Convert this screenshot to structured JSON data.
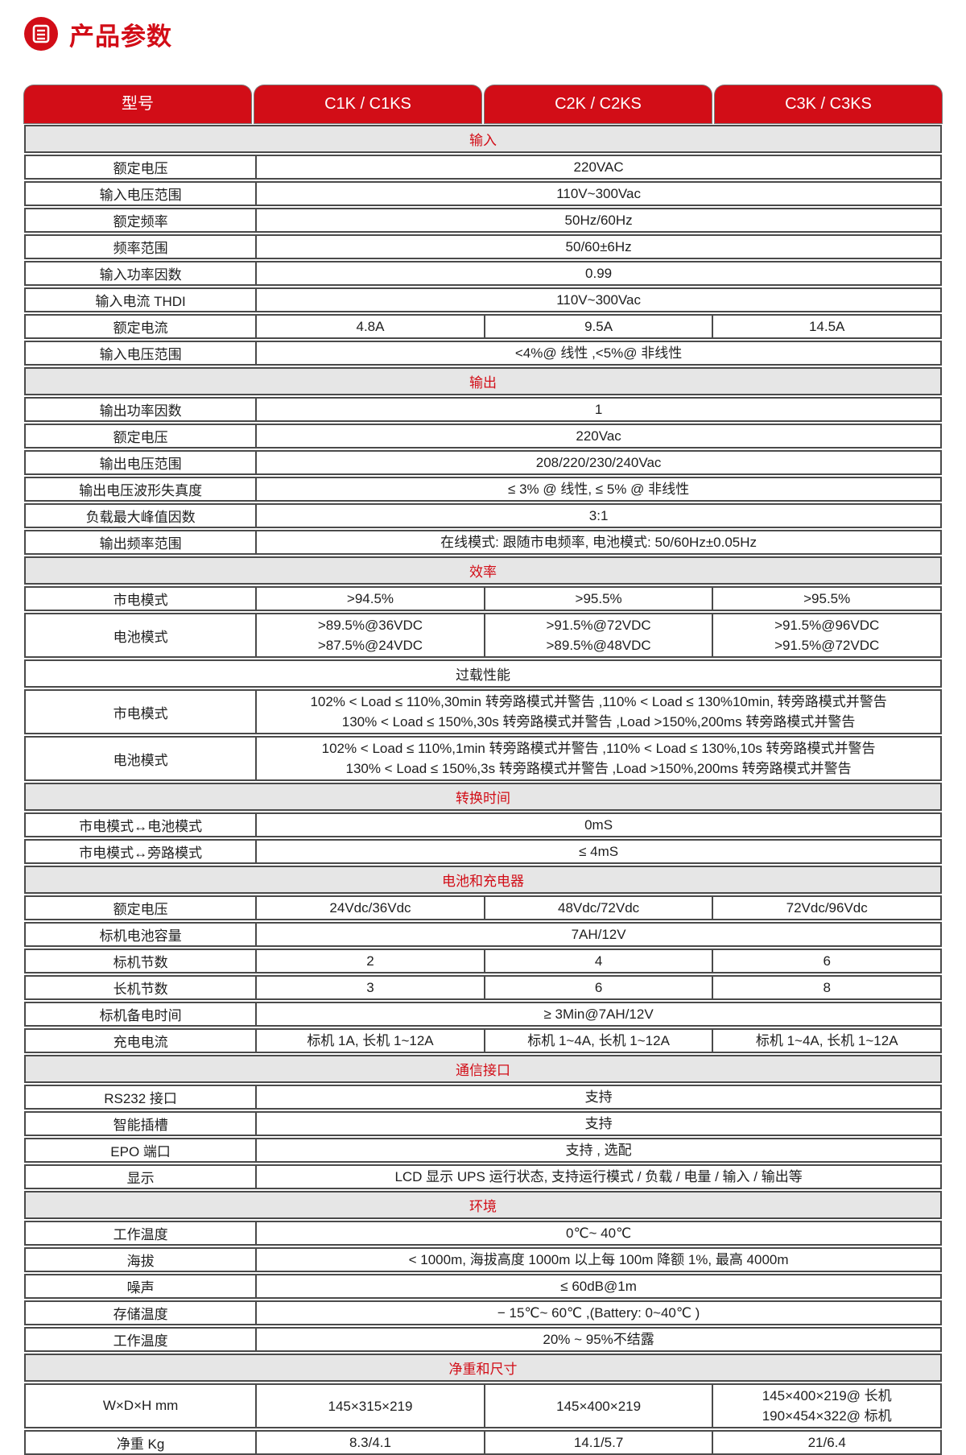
{
  "page": {
    "title": "产品参数"
  },
  "colors": {
    "accent_red": "#d20d17",
    "section_gray": "#e6e6e6",
    "border_gray": "#4a4a4a"
  },
  "icons": {
    "title_icon": "spec-sheet-icon"
  },
  "table": {
    "header_tabs": [
      "型号",
      "C1K / C1KS",
      "C2K / C2KS",
      "C3K / C3KS"
    ],
    "sections": [
      {
        "title": "输入",
        "style": "gray",
        "rows": [
          {
            "label": "额定电压",
            "cells": [
              {
                "text": "220VAC"
              }
            ]
          },
          {
            "label": "输入电压范围",
            "cells": [
              {
                "text": "110V~300Vac"
              }
            ]
          },
          {
            "label": "额定频率",
            "cells": [
              {
                "text": "50Hz/60Hz"
              }
            ]
          },
          {
            "label": "频率范围",
            "cells": [
              {
                "text": "50/60±6Hz"
              }
            ]
          },
          {
            "label": "输入功率因数",
            "cells": [
              {
                "text": "0.99"
              }
            ]
          },
          {
            "label": "输入电流 THDI",
            "cells": [
              {
                "text": "110V~300Vac"
              }
            ]
          },
          {
            "label": "额定电流",
            "cells": [
              {
                "text": "4.8A"
              },
              {
                "text": "9.5A"
              },
              {
                "text": "14.5A"
              }
            ]
          },
          {
            "label": "输入电压范围",
            "cells": [
              {
                "text": "<4%@ 线性 ,<5%@ 非线性"
              }
            ]
          }
        ]
      },
      {
        "title": "输出",
        "style": "gray",
        "rows": [
          {
            "label": "输出功率因数",
            "cells": [
              {
                "text": "1"
              }
            ]
          },
          {
            "label": "额定电压",
            "cells": [
              {
                "text": "220Vac"
              }
            ]
          },
          {
            "label": "输出电压范围",
            "cells": [
              {
                "text": "208/220/230/240Vac"
              }
            ]
          },
          {
            "label": "输出电压波形失真度",
            "cells": [
              {
                "text": "≤ 3% @ 线性, ≤ 5% @ 非线性"
              }
            ]
          },
          {
            "label": "负载最大峰值因数",
            "cells": [
              {
                "text": "3:1"
              }
            ]
          },
          {
            "label": "输出频率范围",
            "cells": [
              {
                "text": "在线模式: 跟随市电频率, 电池模式: 50/60Hz±0.05Hz"
              }
            ]
          }
        ]
      },
      {
        "title": "效率",
        "style": "gray",
        "rows": [
          {
            "label": "市电模式",
            "cells": [
              {
                "text": ">94.5%"
              },
              {
                "text": ">95.5%"
              },
              {
                "text": ">95.5%"
              }
            ]
          },
          {
            "label": "电池模式",
            "cells": [
              {
                "lines": [
                  ">89.5%@36VDC",
                  ">87.5%@24VDC"
                ]
              },
              {
                "lines": [
                  ">91.5%@72VDC",
                  ">89.5%@48VDC"
                ]
              },
              {
                "lines": [
                  ">91.5%@96VDC",
                  ">91.5%@72VDC"
                ]
              }
            ]
          }
        ]
      },
      {
        "title": "过载性能",
        "style": "white",
        "rows": [
          {
            "label": "市电模式",
            "cells": [
              {
                "lines": [
                  "102% < Load ≤ 110%,30min 转旁路模式并警告 ,110% < Load ≤ 130%10min, 转旁路模式并警告",
                  "130% < Load ≤ 150%,30s 转旁路模式并警告 ,Load >150%,200ms 转旁路模式并警告"
                ]
              }
            ]
          },
          {
            "label": "电池模式",
            "cells": [
              {
                "lines": [
                  "102% < Load ≤ 110%,1min 转旁路模式并警告 ,110% < Load ≤ 130%,10s 转旁路模式并警告",
                  "130% < Load ≤ 150%,3s 转旁路模式并警告 ,Load >150%,200ms 转旁路模式并警告"
                ]
              }
            ]
          }
        ]
      },
      {
        "title": "转换时间",
        "style": "gray",
        "rows": [
          {
            "label": "市电模式↔电池模式",
            "cells": [
              {
                "text": "0mS"
              }
            ]
          },
          {
            "label": "市电模式↔旁路模式",
            "cells": [
              {
                "text": "≤ 4mS"
              }
            ]
          }
        ]
      },
      {
        "title": "电池和充电器",
        "style": "gray",
        "rows": [
          {
            "label": "额定电压",
            "cells": [
              {
                "text": "24Vdc/36Vdc"
              },
              {
                "text": "48Vdc/72Vdc"
              },
              {
                "text": "72Vdc/96Vdc"
              }
            ]
          },
          {
            "label": "标机电池容量",
            "cells": [
              {
                "text": "7AH/12V"
              }
            ]
          },
          {
            "label": "标机节数",
            "cells": [
              {
                "text": "2"
              },
              {
                "text": "4"
              },
              {
                "text": "6"
              }
            ]
          },
          {
            "label": "长机节数",
            "cells": [
              {
                "text": "3"
              },
              {
                "text": "6"
              },
              {
                "text": "8"
              }
            ]
          },
          {
            "label": "标机备电时间",
            "cells": [
              {
                "text": "≥ 3Min@7AH/12V"
              }
            ]
          },
          {
            "label": "充电电流",
            "cells": [
              {
                "text": "标机 1A, 长机 1~12A"
              },
              {
                "text": "标机 1~4A, 长机 1~12A"
              },
              {
                "text": "标机 1~4A, 长机 1~12A"
              }
            ]
          }
        ]
      },
      {
        "title": "通信接口",
        "style": "gray",
        "rows": [
          {
            "label": "RS232 接口",
            "cells": [
              {
                "text": "支持"
              }
            ]
          },
          {
            "label": "智能插槽",
            "cells": [
              {
                "text": "支持"
              }
            ]
          },
          {
            "label": "EPO 端口",
            "cells": [
              {
                "text": "支持 , 选配"
              }
            ]
          },
          {
            "label": "显示",
            "cells": [
              {
                "text": "LCD 显示 UPS 运行状态, 支持运行模式 / 负载 / 电量 / 输入 / 输出等"
              }
            ]
          }
        ]
      },
      {
        "title": "环境",
        "style": "gray",
        "rows": [
          {
            "label": "工作温度",
            "cells": [
              {
                "text": "0℃~ 40℃"
              }
            ]
          },
          {
            "label": "海拔",
            "cells": [
              {
                "text": "< 1000m, 海拔高度 1000m 以上每 100m 降额 1%, 最高 4000m"
              }
            ]
          },
          {
            "label": "噪声",
            "cells": [
              {
                "text": "≤ 60dB@1m"
              }
            ]
          },
          {
            "label": "存储温度",
            "cells": [
              {
                "text": "− 15℃~ 60℃ ,(Battery: 0~40℃ )"
              }
            ]
          },
          {
            "label": "工作温度",
            "cells": [
              {
                "text": "20% ~ 95%不结露"
              }
            ]
          }
        ]
      },
      {
        "title": "净重和尺寸",
        "style": "gray",
        "rows": [
          {
            "label": "W×D×H mm",
            "cells": [
              {
                "text": "145×315×219"
              },
              {
                "text": "145×400×219"
              },
              {
                "lines": [
                  "145×400×219@ 长机",
                  "190×454×322@ 标机"
                ]
              }
            ]
          },
          {
            "label": "净重 Kg",
            "cells": [
              {
                "text": "8.3/4.1"
              },
              {
                "text": "14.1/5.7"
              },
              {
                "text": "21/6.4"
              }
            ]
          }
        ]
      }
    ]
  }
}
